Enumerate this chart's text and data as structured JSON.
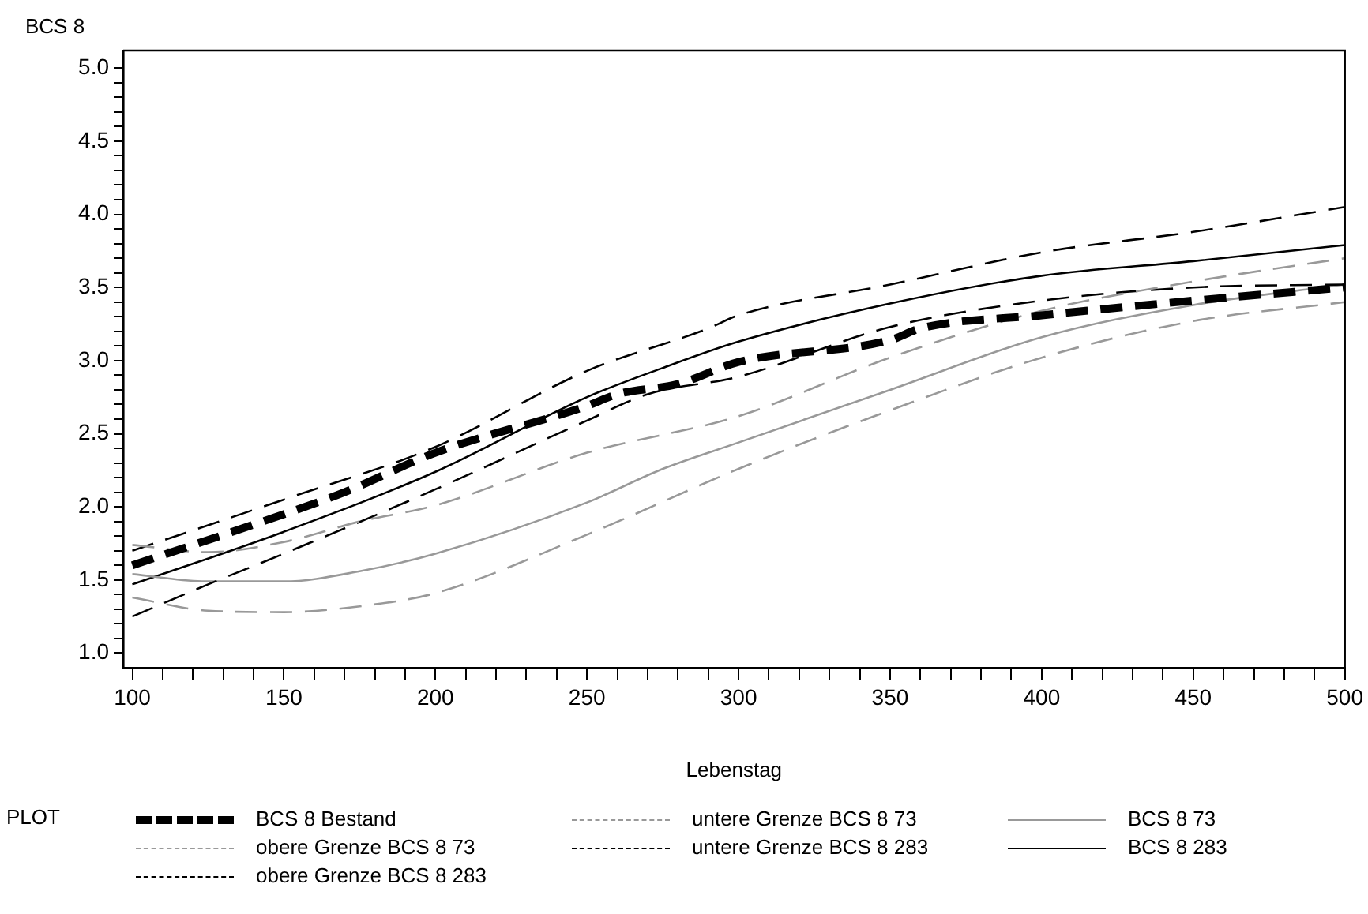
{
  "chart_data": {
    "type": "line",
    "xlabel": "Lebenstag",
    "ylabel": "BCS 8",
    "legend_title": "PLOT",
    "legend": "bottom",
    "grid": false,
    "marker": "none",
    "xlim": [
      97,
      500
    ],
    "ylim": [
      0.9,
      5.12
    ],
    "xticks": [
      100,
      {
        "value": 110,
        "label": null
      },
      {
        "value": 120,
        "label": null
      },
      {
        "value": 130,
        "label": null
      },
      {
        "value": 140,
        "label": null
      },
      150,
      {
        "value": 160,
        "label": null
      },
      {
        "value": 170,
        "label": null
      },
      {
        "value": 180,
        "label": null
      },
      {
        "value": 190,
        "label": null
      },
      200,
      {
        "value": 210,
        "label": null
      },
      {
        "value": 220,
        "label": null
      },
      {
        "value": 230,
        "label": null
      },
      {
        "value": 240,
        "label": null
      },
      250,
      {
        "value": 260,
        "label": null
      },
      {
        "value": 270,
        "label": null
      },
      {
        "value": 280,
        "label": null
      },
      {
        "value": 290,
        "label": null
      },
      300,
      {
        "value": 310,
        "label": null
      },
      {
        "value": 320,
        "label": null
      },
      {
        "value": 330,
        "label": null
      },
      {
        "value": 340,
        "label": null
      },
      350,
      {
        "value": 360,
        "label": null
      },
      {
        "value": 370,
        "label": null
      },
      {
        "value": 380,
        "label": null
      },
      {
        "value": 390,
        "label": null
      },
      400,
      {
        "value": 410,
        "label": null
      },
      {
        "value": 420,
        "label": null
      },
      {
        "value": 430,
        "label": null
      },
      {
        "value": 440,
        "label": null
      },
      450,
      {
        "value": 460,
        "label": null
      },
      {
        "value": 470,
        "label": null
      },
      {
        "value": 480,
        "label": null
      },
      {
        "value": 490,
        "label": null
      },
      500
    ],
    "yticks": [
      {
        "value": 1,
        "label": "1.0"
      },
      {
        "value": 1.1,
        "label": null
      },
      {
        "value": 1.2,
        "label": null
      },
      {
        "value": 1.3,
        "label": null
      },
      {
        "value": 1.4,
        "label": null
      },
      1.5,
      {
        "value": 1.6,
        "label": null
      },
      {
        "value": 1.7,
        "label": null
      },
      {
        "value": 1.8,
        "label": null
      },
      {
        "value": 1.9,
        "label": null
      },
      {
        "value": 2,
        "label": "2.0"
      },
      {
        "value": 2.1,
        "label": null
      },
      {
        "value": 2.2,
        "label": null
      },
      {
        "value": 2.3,
        "label": null
      },
      {
        "value": 2.4,
        "label": null
      },
      2.5,
      {
        "value": 2.6,
        "label": null
      },
      {
        "value": 2.7,
        "label": null
      },
      {
        "value": 2.8,
        "label": null
      },
      {
        "value": 2.9,
        "label": null
      },
      {
        "value": 3,
        "label": "3.0"
      },
      {
        "value": 3.1,
        "label": null
      },
      {
        "value": 3.2,
        "label": null
      },
      {
        "value": 3.3,
        "label": null
      },
      {
        "value": 3.4,
        "label": null
      },
      3.5,
      {
        "value": 3.6,
        "label": null
      },
      {
        "value": 3.7,
        "label": null
      },
      {
        "value": 3.8,
        "label": null
      },
      {
        "value": 3.9,
        "label": null
      },
      {
        "value": 4,
        "label": "4.0"
      },
      {
        "value": 4.1,
        "label": null
      },
      {
        "value": 4.2,
        "label": null
      },
      {
        "value": 4.3,
        "label": null
      },
      {
        "value": 4.4,
        "label": null
      },
      4.5,
      {
        "value": 4.6,
        "label": null
      },
      {
        "value": 4.7,
        "label": null
      },
      {
        "value": 4.8,
        "label": null
      },
      {
        "value": 4.9,
        "label": null
      },
      {
        "value": 5,
        "label": "5.0"
      }
    ],
    "series": [
      {
        "name": "BCS 8 Bestand",
        "color": "#000000",
        "line_style": "dashed",
        "x": [
          100,
          150,
          170,
          200,
          250,
          260,
          280,
          300,
          350,
          360,
          400,
          450,
          500
        ],
        "values": [
          1.6,
          1.95,
          2.1,
          2.37,
          2.69,
          2.77,
          2.84,
          2.99,
          3.14,
          3.22,
          3.31,
          3.41,
          3.5
        ]
      },
      {
        "name": "obere Grenze BCS 8 73",
        "color": "#999999",
        "line_style": "dashed",
        "x": [
          100,
          125,
          150,
          175,
          200,
          250,
          300,
          350,
          400,
          450,
          500
        ],
        "values": [
          1.74,
          1.69,
          1.76,
          1.9,
          2.01,
          2.37,
          2.62,
          3.02,
          3.34,
          3.54,
          3.7
        ]
      },
      {
        "name": "obere Grenze BCS 8 283",
        "color": "#000000",
        "line_style": "dashed",
        "x": [
          100,
          150,
          200,
          250,
          290,
          300,
          350,
          400,
          450,
          500
        ],
        "values": [
          1.7,
          2.05,
          2.41,
          2.93,
          3.22,
          3.31,
          3.52,
          3.74,
          3.88,
          4.05
        ]
      },
      {
        "name": "untere Grenze BCS 8 73",
        "color": "#999999",
        "line_style": "dashed",
        "x": [
          100,
          125,
          150,
          175,
          200,
          250,
          300,
          350,
          400,
          450,
          500
        ],
        "values": [
          1.38,
          1.29,
          1.28,
          1.32,
          1.41,
          1.81,
          2.26,
          2.66,
          3.02,
          3.27,
          3.4
        ]
      },
      {
        "name": "untere Grenze BCS 8 283",
        "color": "#000000",
        "line_style": "dashed",
        "x": [
          100,
          125,
          150,
          200,
          250,
          270,
          300,
          350,
          400,
          450,
          500
        ],
        "values": [
          1.25,
          1.47,
          1.68,
          2.12,
          2.59,
          2.77,
          2.89,
          3.23,
          3.41,
          3.5,
          3.52
        ]
      },
      {
        "name": "BCS 8 73",
        "color": "#999999",
        "line_style": "solid",
        "x": [
          100,
          125,
          150,
          175,
          200,
          250,
          275,
          300,
          350,
          400,
          450,
          500
        ],
        "values": [
          1.54,
          1.49,
          1.49,
          1.56,
          1.68,
          2.03,
          2.26,
          2.44,
          2.8,
          3.16,
          3.38,
          3.52
        ]
      },
      {
        "name": "BCS 8 283",
        "color": "#000000",
        "line_style": "solid",
        "x": [
          100,
          150,
          200,
          250,
          275,
          300,
          350,
          400,
          450,
          500
        ],
        "values": [
          1.47,
          1.83,
          2.24,
          2.75,
          2.95,
          3.13,
          3.39,
          3.58,
          3.68,
          3.79
        ]
      }
    ]
  }
}
